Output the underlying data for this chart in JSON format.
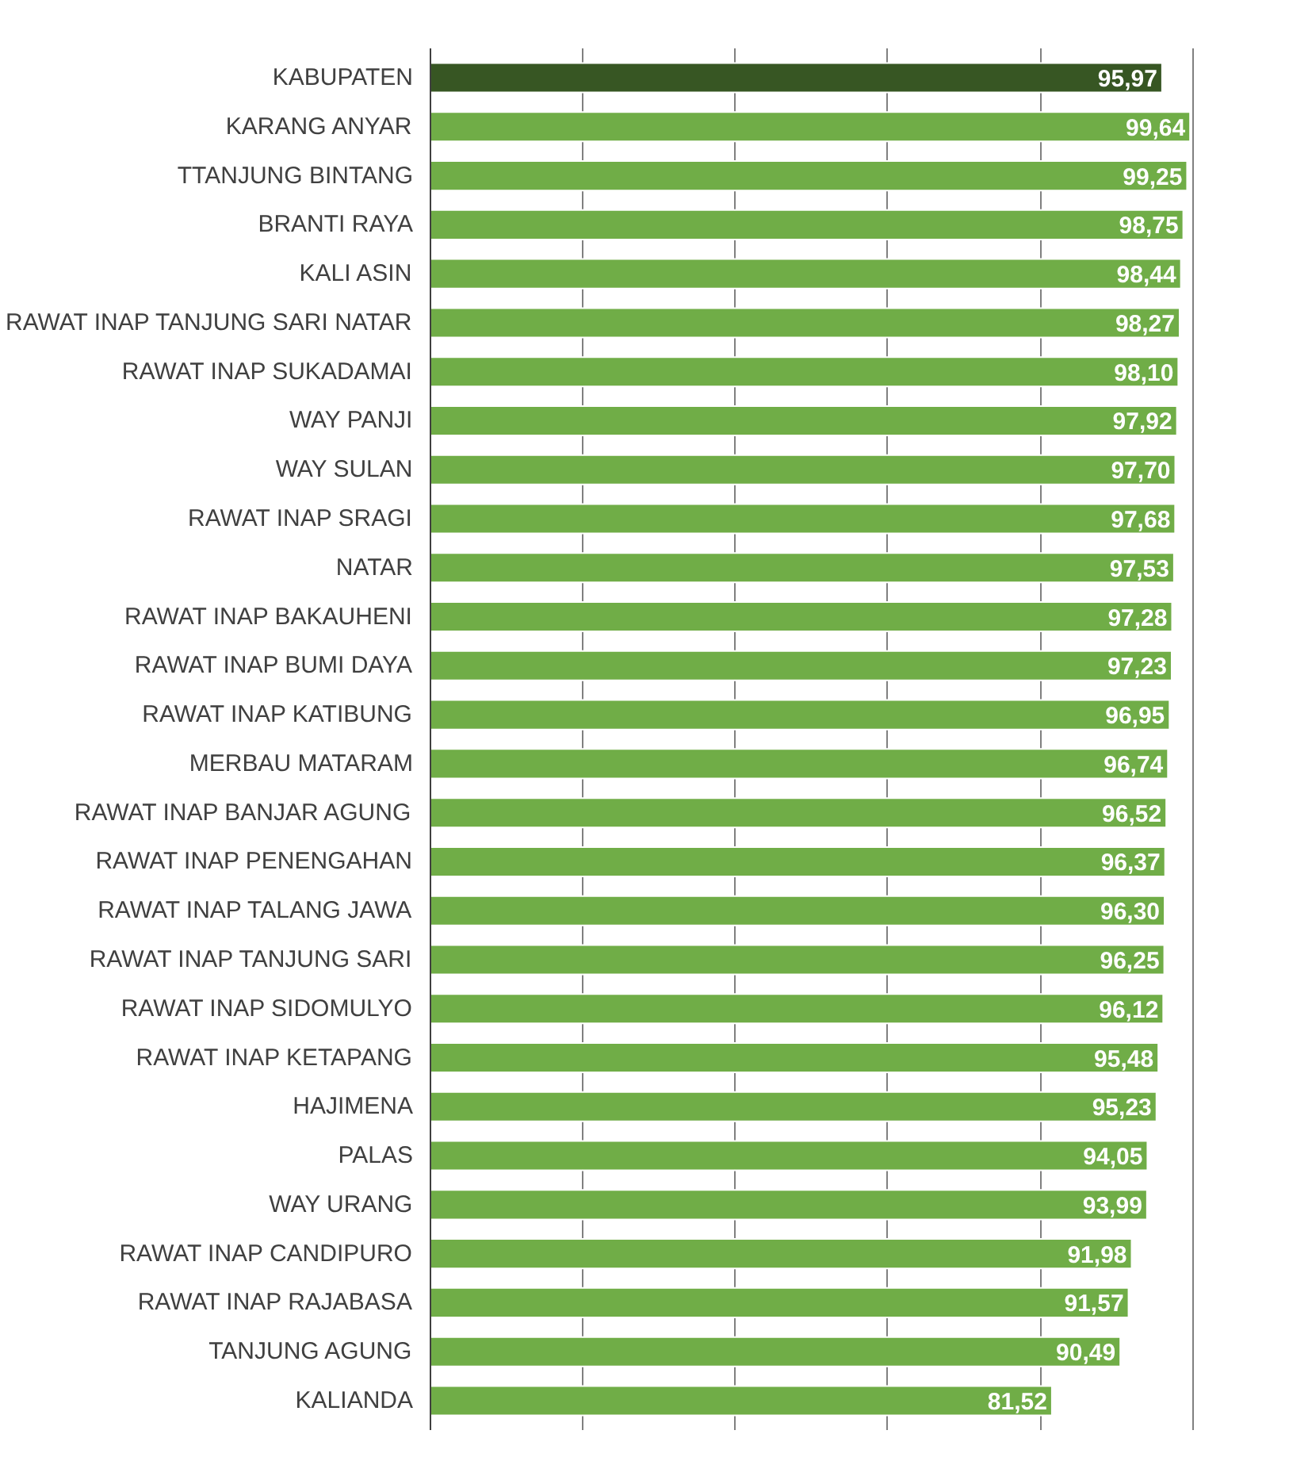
{
  "chart_data": {
    "type": "bar",
    "orientation": "horizontal",
    "categories": [
      "KABUPATEN",
      "KARANG ANYAR",
      "TTANJUNG BINTANG",
      "BRANTI RAYA",
      "KALI ASIN",
      "RAWAT INAP TANJUNG SARI NATAR",
      "RAWAT INAP SUKADAMAI",
      "WAY PANJI",
      "WAY SULAN",
      "RAWAT INAP SRAGI",
      "NATAR",
      "RAWAT INAP BAKAUHENI",
      "RAWAT INAP BUMI DAYA",
      "RAWAT INAP KATIBUNG",
      "MERBAU MATARAM",
      "RAWAT INAP BANJAR AGUNG",
      "RAWAT INAP PENENGAHAN",
      "RAWAT INAP TALANG JAWA",
      "RAWAT INAP TANJUNG SARI",
      "RAWAT INAP SIDOMULYO",
      "RAWAT INAP KETAPANG",
      "HAJIMENA",
      "PALAS",
      "WAY URANG",
      "RAWAT INAP CANDIPURO",
      "RAWAT INAP RAJABASA",
      "TANJUNG AGUNG",
      "KALIANDA"
    ],
    "values": [
      95.97,
      99.64,
      99.25,
      98.75,
      98.44,
      98.27,
      98.1,
      97.92,
      97.7,
      97.68,
      97.53,
      97.28,
      97.23,
      96.95,
      96.74,
      96.52,
      96.37,
      96.3,
      96.25,
      96.12,
      95.48,
      95.23,
      94.05,
      93.99,
      91.98,
      91.57,
      90.49,
      81.52
    ],
    "value_labels": [
      "95,97",
      "99,64",
      "99,25",
      "98,75",
      "98,44",
      "98,27",
      "98,10",
      "97,92",
      "97,70",
      "97,68",
      "97,53",
      "97,28",
      "97,23",
      "96,95",
      "96,74",
      "96,52",
      "96,37",
      "96,30",
      "96,25",
      "96,12",
      "95,48",
      "95,23",
      "94,05",
      "93,99",
      "91,98",
      "91,57",
      "90,49",
      "81,52"
    ],
    "colors": [
      "#375623",
      "#70ad47",
      "#70ad47",
      "#70ad47",
      "#70ad47",
      "#70ad47",
      "#70ad47",
      "#70ad47",
      "#70ad47",
      "#70ad47",
      "#70ad47",
      "#70ad47",
      "#70ad47",
      "#70ad47",
      "#70ad47",
      "#70ad47",
      "#70ad47",
      "#70ad47",
      "#70ad47",
      "#70ad47",
      "#70ad47",
      "#70ad47",
      "#70ad47",
      "#70ad47",
      "#70ad47",
      "#70ad47",
      "#70ad47",
      "#70ad47"
    ],
    "grid": "x",
    "tick_labels": "y"
  }
}
